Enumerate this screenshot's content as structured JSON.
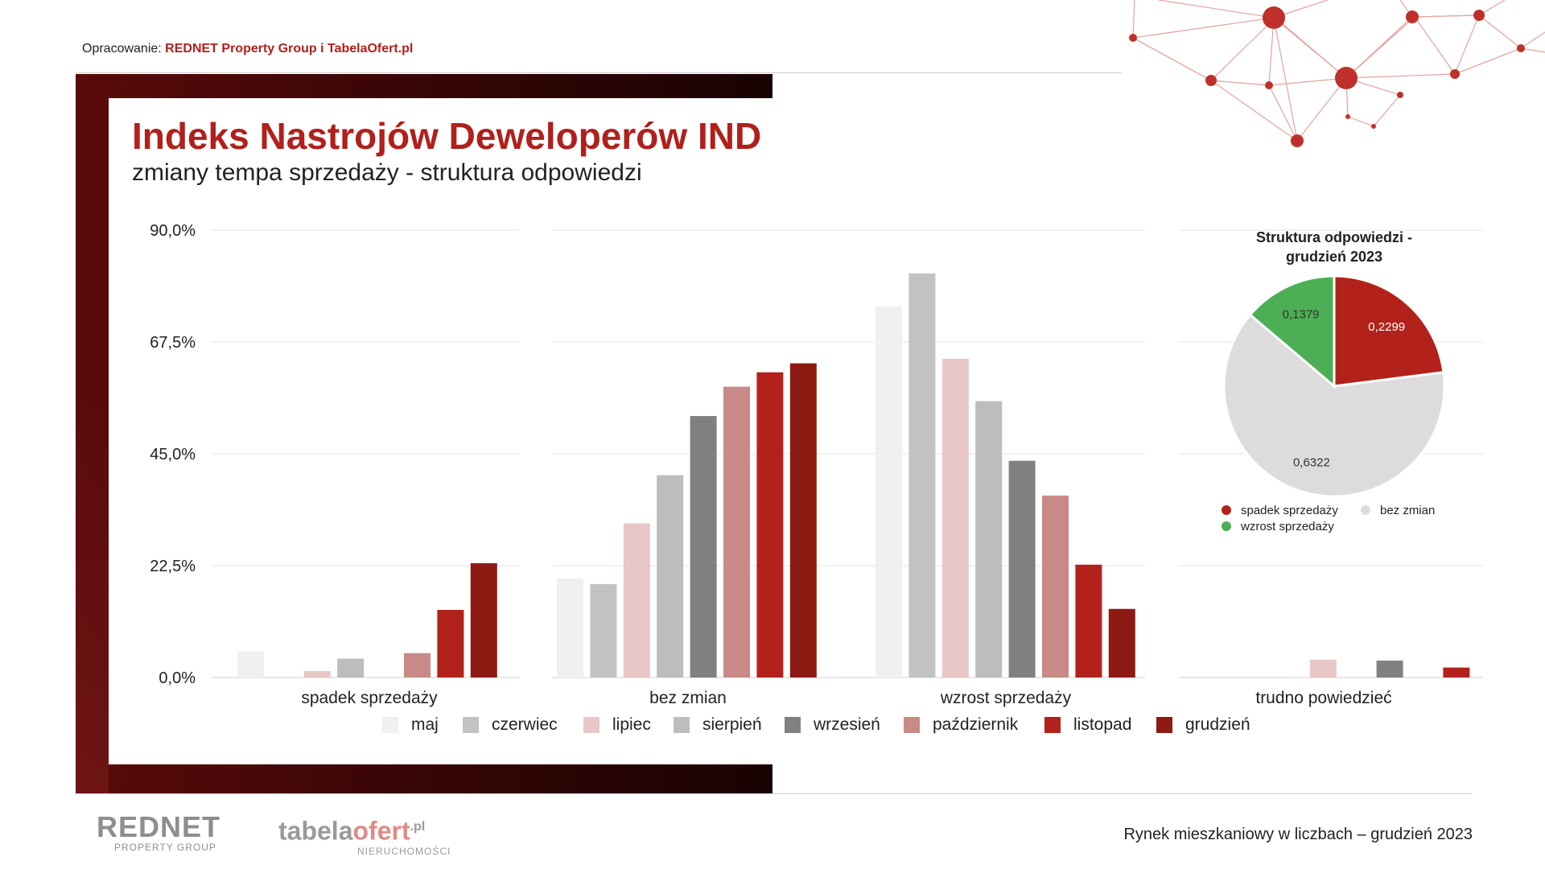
{
  "header": {
    "credit_prefix": "Opracowanie: ",
    "credit_source": "REDNET Property Group i TabelaOfert.pl"
  },
  "title": "Indeks Nastrojów Deweloperów IND",
  "subtitle": "zmiany tempa sprzedaży - struktura odpowiedzi",
  "chart_data": [
    {
      "type": "bar",
      "categories": [
        "spadek sprzedaży",
        "bez zmian",
        "wzrost sprzedaży",
        "trudno powiedzieć"
      ],
      "ylim": [
        0,
        90
      ],
      "yticks": [
        "0,0%",
        "22,5%",
        "45,0%",
        "67,5%",
        "90,0%"
      ],
      "ytick_values": [
        0,
        22.5,
        45,
        67.5,
        90
      ],
      "series": [
        {
          "name": "maj",
          "color": "#f0f0f0",
          "values": [
            5.3,
            19.9,
            74.7,
            0
          ]
        },
        {
          "name": "czerwiec",
          "color": "#c2c2c2",
          "values": [
            0,
            18.8,
            81.3,
            0
          ]
        },
        {
          "name": "lipiec",
          "color": "#e8c7c6",
          "values": [
            1.3,
            31.0,
            64.1,
            3.6
          ]
        },
        {
          "name": "sierpień",
          "color": "#bdbdbd",
          "values": [
            3.8,
            40.7,
            55.6,
            0
          ]
        },
        {
          "name": "wrzesień",
          "color": "#808080",
          "values": [
            0,
            52.6,
            43.6,
            3.4
          ]
        },
        {
          "name": "październik",
          "color": "#c98987",
          "values": [
            4.9,
            58.5,
            36.6,
            0
          ]
        },
        {
          "name": "listopad",
          "color": "#b3221a",
          "values": [
            13.6,
            61.4,
            22.7,
            2.0
          ]
        },
        {
          "name": "grudzień",
          "color": "#8e1a14",
          "values": [
            23.0,
            63.2,
            13.8,
            0
          ]
        }
      ]
    },
    {
      "type": "pie",
      "title_line1": "Struktura odpowiedzi -",
      "title_line2": "grudzień 2023",
      "slices": [
        {
          "label": "spadek sprzedaży",
          "value": 0.2299,
          "display": "0,2299",
          "color": "#b3221a"
        },
        {
          "label": "bez zmian",
          "value": 0.6322,
          "display": "0,6322",
          "color": "#dcdcdc"
        },
        {
          "label": "wzrost sprzedaży",
          "value": 0.1379,
          "display": "0,1379",
          "color": "#4caf55"
        }
      ]
    }
  ],
  "footer": {
    "tagline": "Rynek mieszkaniowy w liczbach – grudzień  2023",
    "logo_rednet_main": "REDNET",
    "logo_rednet_sub": "PROPERTY GROUP",
    "logo_tabela_a": "tabela",
    "logo_tabela_b": "ofert",
    "logo_tabela_c": ".pl",
    "logo_tabela_sub": "NIERUCHOMOŚCI"
  }
}
